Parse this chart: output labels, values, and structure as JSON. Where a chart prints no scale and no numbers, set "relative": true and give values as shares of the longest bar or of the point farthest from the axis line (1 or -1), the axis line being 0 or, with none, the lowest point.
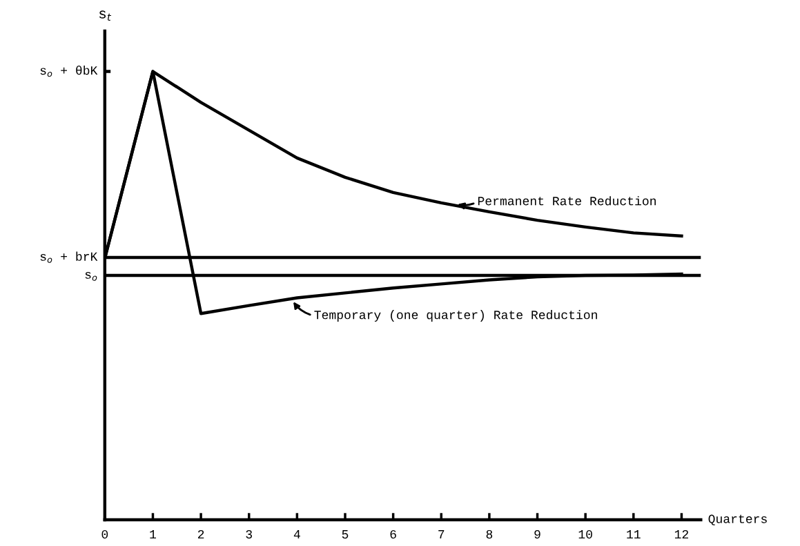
{
  "chart_data": {
    "type": "line",
    "relative": true,
    "ylabel": "s$_{t}$",
    "xlabel": "Quarters",
    "x": [
      0,
      1,
      2,
      3,
      4,
      5,
      6,
      7,
      8,
      9,
      10,
      11,
      12
    ],
    "xlim": [
      0,
      12.4
    ],
    "xticks": [
      0,
      1,
      2,
      3,
      4,
      5,
      6,
      7,
      8,
      9,
      10,
      11,
      12
    ],
    "series": [
      {
        "color": "#000000",
        "values": [
          0.583,
          1.0,
          0.931,
          0.869,
          0.807,
          0.764,
          0.73,
          0.707,
          0.687,
          0.668,
          0.653,
          0.64,
          0.633
        ]
      },
      {
        "color": "#000000",
        "values": [
          0.583,
          1.0,
          0.46,
          0.478,
          0.495,
          0.506,
          0.517,
          0.526,
          0.535,
          0.542,
          0.545,
          0.546,
          0.548
        ]
      }
    ],
    "ref_lines": [
      {
        "axis": "y",
        "value": 0.585,
        "label": "s$_{o}$ + brK",
        "color": "#000000"
      },
      {
        "axis": "y",
        "value": 0.545,
        "label": "s$_{o}$",
        "color": "#000000"
      }
    ],
    "annotations": [
      "s$_{o}$ + θbK",
      {
        "text": "Permanent Rate Reduction",
        "x": 7.3,
        "y": 0.705
      },
      {
        "text": "Temporary (one quarter) Rate Reduction",
        "x": 3.9,
        "y": 0.49
      }
    ],
    "grid": false,
    "legend": false,
    "marker": "none",
    "line_style": "solid"
  }
}
